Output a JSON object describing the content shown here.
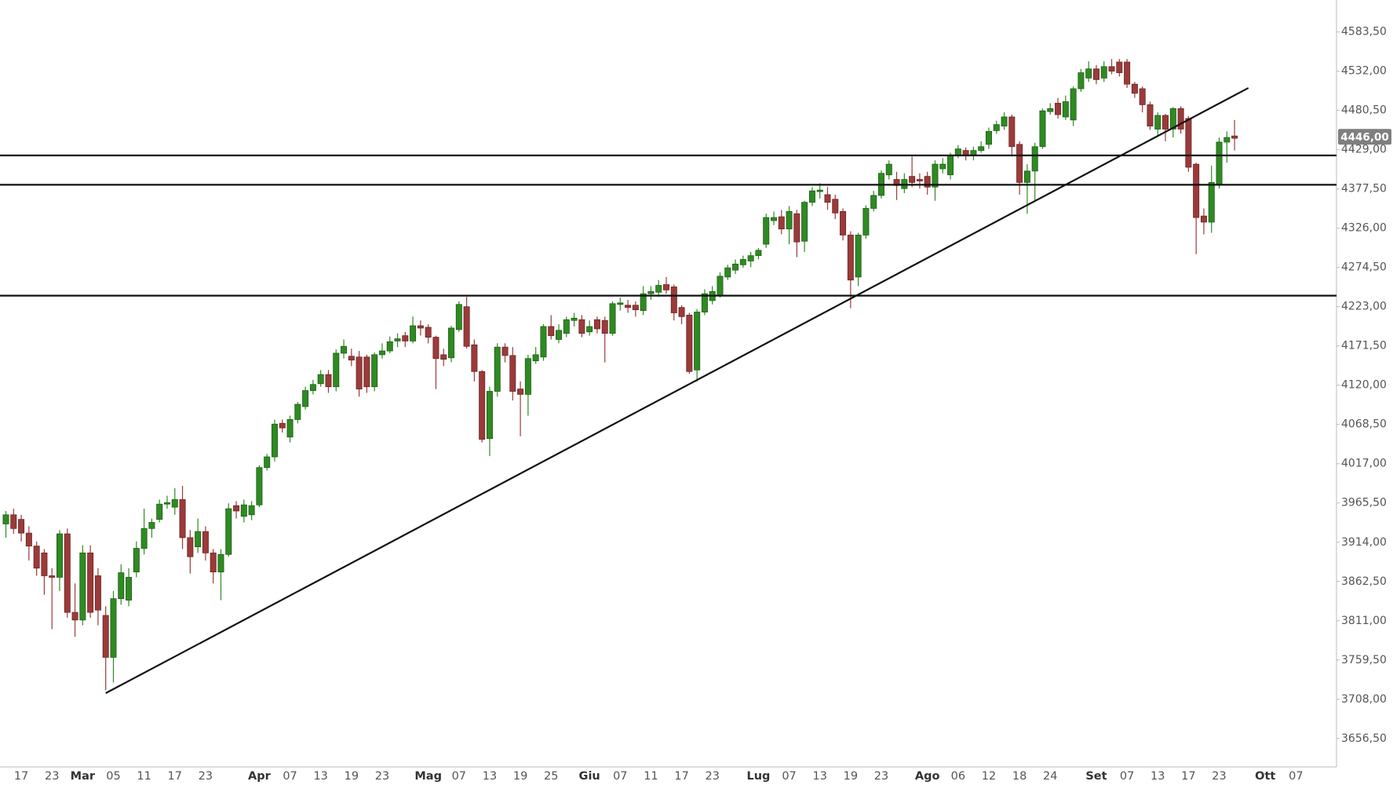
{
  "chart_data": {
    "type": "candlestick",
    "categories": [
      null,
      null,
      "17",
      null,
      null,
      null,
      "23",
      null,
      null,
      null,
      "Mar",
      null,
      null,
      null,
      "05",
      null,
      null,
      null,
      "11",
      null,
      null,
      null,
      "17",
      null,
      null,
      null,
      "23",
      null,
      null,
      null,
      null,
      null,
      null,
      "Apr",
      null,
      null,
      null,
      "07",
      null,
      null,
      null,
      "13",
      null,
      null,
      null,
      "19",
      null,
      null,
      null,
      "23",
      null,
      null,
      null,
      null,
      null,
      "Mag",
      null,
      null,
      null,
      "07",
      null,
      null,
      null,
      "13",
      null,
      null,
      null,
      "19",
      null,
      null,
      null,
      "25",
      null,
      null,
      null,
      null,
      "Giu",
      null,
      null,
      null,
      "07",
      null,
      null,
      null,
      "11",
      null,
      null,
      null,
      "17",
      null,
      null,
      null,
      "23",
      null,
      null,
      null,
      null,
      null,
      "Lug",
      null,
      null,
      null,
      "07",
      null,
      null,
      null,
      "13",
      null,
      null,
      null,
      "19",
      null,
      null,
      null,
      "23",
      null,
      null,
      null,
      null,
      null,
      "Ago",
      null,
      null,
      null,
      "06",
      null,
      null,
      null,
      "12",
      null,
      null,
      null,
      "18",
      null,
      null,
      null,
      "24",
      null,
      null,
      null,
      null,
      null,
      "Set",
      null,
      null,
      null,
      "07",
      null,
      null,
      null,
      "13",
      null,
      null,
      null,
      "17",
      null,
      null,
      null,
      "23",
      null,
      null,
      null,
      null,
      null,
      "Ott",
      null,
      null,
      null,
      "07"
    ],
    "open": [
      3938,
      3950,
      3944,
      3926,
      3909,
      3900,
      3870,
      3868,
      3925,
      3822,
      3812,
      3900,
      3870,
      3818,
      3763,
      3840,
      3838,
      3875,
      3906,
      3932,
      3944,
      3964,
      3960,
      3970,
      3920,
      3908,
      3928,
      3900,
      3875,
      3898,
      3962,
      3948,
      3950,
      3963,
      4012,
      4026,
      4070,
      4052,
      4075,
      4092,
      4113,
      4122,
      4134,
      4118,
      4162,
      4158,
      4157,
      4157,
      4118,
      4160,
      4165,
      4178,
      4185,
      4178,
      4198,
      4196,
      4183,
      4160,
      4156,
      4193,
      4223,
      4173,
      4138,
      4050,
      4112,
      4170,
      4159,
      4115,
      4108,
      4152,
      4157,
      4197,
      4180,
      4188,
      4205,
      4206,
      4190,
      4206,
      4205,
      4188,
      4226,
      4225,
      4225,
      4218,
      4240,
      4242,
      4252,
      4249,
      4222,
      4212,
      4140,
      4216,
      4231,
      4238,
      4262,
      4271,
      4278,
      4283,
      4290,
      4305,
      4336,
      4341,
      4325,
      4345,
      4309,
      4360,
      4374,
      4370,
      4364,
      4348,
      4317,
      4262,
      4317,
      4352,
      4369,
      4396,
      4390,
      4378,
      4394,
      4390,
      4394,
      4380,
      4404,
      4396,
      4421,
      4428,
      4422,
      4428,
      4436,
      4454,
      4460,
      4472,
      4436,
      4386,
      4401,
      4433,
      4479,
      4490,
      4472,
      4468,
      4509,
      4523,
      4535,
      4523,
      4538,
      4544,
      4544,
      4515,
      4509,
      4488,
      4456,
      4474,
      4456,
      4483,
      4470,
      4410,
      4342,
      4334,
      4384,
      4439,
      4447,
      null,
      null,
      null,
      null,
      null,
      null,
      null,
      null
    ],
    "high": [
      3955,
      3958,
      3950,
      3935,
      3915,
      3905,
      3880,
      3930,
      3932,
      3860,
      3910,
      3910,
      3880,
      3830,
      3850,
      3885,
      3880,
      3915,
      3958,
      3945,
      3970,
      3975,
      3985,
      3988,
      3930,
      3945,
      3935,
      3905,
      3905,
      3965,
      3968,
      3970,
      3968,
      4015,
      4030,
      4075,
      4075,
      4080,
      4098,
      4118,
      4127,
      4140,
      4140,
      4167,
      4180,
      4168,
      4165,
      4160,
      4163,
      4175,
      4184,
      4188,
      4190,
      4210,
      4205,
      4200,
      4185,
      4168,
      4198,
      4230,
      4236,
      4180,
      4140,
      4118,
      4175,
      4175,
      4170,
      4125,
      4160,
      4170,
      4200,
      4212,
      4200,
      4210,
      4215,
      4212,
      4205,
      4210,
      4210,
      4230,
      4235,
      4232,
      4230,
      4250,
      4250,
      4258,
      4262,
      4252,
      4225,
      4215,
      4220,
      4246,
      4250,
      4268,
      4278,
      4285,
      4290,
      4295,
      4300,
      4345,
      4348,
      4350,
      4355,
      4350,
      4362,
      4380,
      4385,
      4380,
      4370,
      4352,
      4322,
      4320,
      4356,
      4375,
      4402,
      4415,
      4400,
      4398,
      4420,
      4398,
      4400,
      4415,
      4418,
      4425,
      4435,
      4432,
      4433,
      4440,
      4458,
      4467,
      4478,
      4475,
      4440,
      4410,
      4438,
      4483,
      4490,
      4497,
      4500,
      4512,
      4535,
      4545,
      4540,
      4545,
      4548,
      4548,
      4548,
      4518,
      4512,
      4492,
      4478,
      4476,
      4485,
      4486,
      4473,
      4412,
      4352,
      4408,
      4445,
      4453,
      4468,
      null,
      null,
      null,
      null,
      null,
      null,
      null,
      null
    ],
    "low": [
      3920,
      3925,
      3915,
      3890,
      3870,
      3845,
      3800,
      3850,
      3815,
      3790,
      3805,
      3815,
      3805,
      3720,
      3730,
      3832,
      3830,
      3868,
      3898,
      3920,
      3940,
      3958,
      3950,
      3905,
      3873,
      3900,
      3890,
      3860,
      3838,
      3895,
      3945,
      3940,
      3943,
      3960,
      4008,
      4020,
      4058,
      4045,
      4070,
      4088,
      4108,
      4118,
      4110,
      4112,
      4155,
      4145,
      4105,
      4110,
      4112,
      4155,
      4162,
      4170,
      4170,
      4175,
      4185,
      4175,
      4115,
      4145,
      4150,
      4190,
      4168,
      4125,
      4045,
      4027,
      4105,
      4150,
      4100,
      4053,
      4080,
      4148,
      4152,
      4180,
      4175,
      4183,
      4197,
      4183,
      4185,
      4188,
      4150,
      4185,
      4218,
      4215,
      4210,
      4212,
      4232,
      4236,
      4240,
      4205,
      4200,
      4135,
      4125,
      4212,
      4226,
      4235,
      4258,
      4266,
      4274,
      4275,
      4285,
      4300,
      4330,
      4318,
      4305,
      4288,
      4295,
      4355,
      4365,
      4350,
      4338,
      4310,
      4221,
      4250,
      4312,
      4348,
      4365,
      4390,
      4363,
      4372,
      4380,
      4378,
      4370,
      4362,
      4398,
      4390,
      4418,
      4415,
      4415,
      4425,
      4430,
      4450,
      4455,
      4420,
      4370,
      4345,
      4362,
      4430,
      4475,
      4470,
      4468,
      4460,
      4505,
      4518,
      4515,
      4518,
      4528,
      4525,
      4510,
      4497,
      4478,
      4455,
      4446,
      4440,
      4445,
      4450,
      4400,
      4292,
      4318,
      4320,
      4378,
      4412,
      4428,
      null,
      null,
      null,
      null,
      null,
      null,
      null,
      null
    ],
    "close": [
      3950,
      3932,
      3926,
      3909,
      3880,
      3870,
      3868,
      3925,
      3822,
      3812,
      3900,
      3822,
      3825,
      3763,
      3840,
      3874,
      3868,
      3906,
      3932,
      3940,
      3964,
      3966,
      3970,
      3920,
      3895,
      3928,
      3900,
      3875,
      3898,
      3958,
      3955,
      3963,
      3962,
      4012,
      4026,
      4069,
      4064,
      4075,
      4095,
      4113,
      4121,
      4134,
      4118,
      4162,
      4171,
      4153,
      4115,
      4118,
      4160,
      4165,
      4177,
      4181,
      4178,
      4198,
      4195,
      4183,
      4155,
      4154,
      4195,
      4226,
      4171,
      4138,
      4049,
      4112,
      4170,
      4159,
      4112,
      4108,
      4155,
      4160,
      4197,
      4185,
      4192,
      4206,
      4208,
      4188,
      4197,
      4194,
      4188,
      4227,
      4228,
      4222,
      4219,
      4240,
      4243,
      4251,
      4245,
      4215,
      4210,
      4138,
      4216,
      4240,
      4243,
      4263,
      4274,
      4279,
      4285,
      4290,
      4297,
      4340,
      4340,
      4325,
      4348,
      4308,
      4360,
      4375,
      4376,
      4360,
      4346,
      4317,
      4258,
      4317,
      4352,
      4369,
      4398,
      4410,
      4382,
      4390,
      4386,
      4388,
      4380,
      4410,
      4410,
      4421,
      4430,
      4421,
      4428,
      4433,
      4453,
      4462,
      4472,
      4433,
      4386,
      4401,
      4433,
      4480,
      4483,
      4475,
      4492,
      4509,
      4530,
      4535,
      4521,
      4538,
      4532,
      4530,
      4515,
      4503,
      4488,
      4460,
      4474,
      4456,
      4483,
      4456,
      4406,
      4340,
      4334,
      4386,
      4439,
      4445,
      4444,
      null,
      null,
      null,
      null,
      null,
      null,
      null,
      null
    ],
    "up_color": "#2f8a23",
    "down_color": "#9c3a3a",
    "ylim": [
      3619.2,
      4625.4
    ],
    "yticks": [
      {
        "value": 3656.5,
        "label": "3656,50"
      },
      {
        "value": 3708,
        "label": "3708,00"
      },
      {
        "value": 3759.5,
        "label": "3759,50"
      },
      {
        "value": 3811,
        "label": "3811,00"
      },
      {
        "value": 3862.5,
        "label": "3862,50"
      },
      {
        "value": 3914,
        "label": "3914,00"
      },
      {
        "value": 3965.5,
        "label": "3965,50"
      },
      {
        "value": 4017,
        "label": "4017,00"
      },
      {
        "value": 4068.5,
        "label": "4068,50"
      },
      {
        "value": 4120,
        "label": "4120,00"
      },
      {
        "value": 4171.5,
        "label": "4171,50"
      },
      {
        "value": 4223,
        "label": "4223,00"
      },
      {
        "value": 4274.5,
        "label": "4274,50"
      },
      {
        "value": 4326,
        "label": "4326,00"
      },
      {
        "value": 4377.5,
        "label": "4377,50"
      },
      {
        "value": 4429,
        "label": "4429,00"
      },
      {
        "value": 4480.5,
        "label": "4480,50"
      },
      {
        "value": 4532,
        "label": "4532,00"
      },
      {
        "value": 4583.5,
        "label": "4583,50"
      }
    ],
    "grid": false,
    "last_price": {
      "value": 4446,
      "label": "4446,00"
    },
    "hlines": [
      4421.5,
      4383,
      4237.5
    ],
    "trendline": {
      "from": {
        "index": 13,
        "value": 3716
      },
      "to": {
        "index": 161.8,
        "value": 4510
      }
    }
  }
}
